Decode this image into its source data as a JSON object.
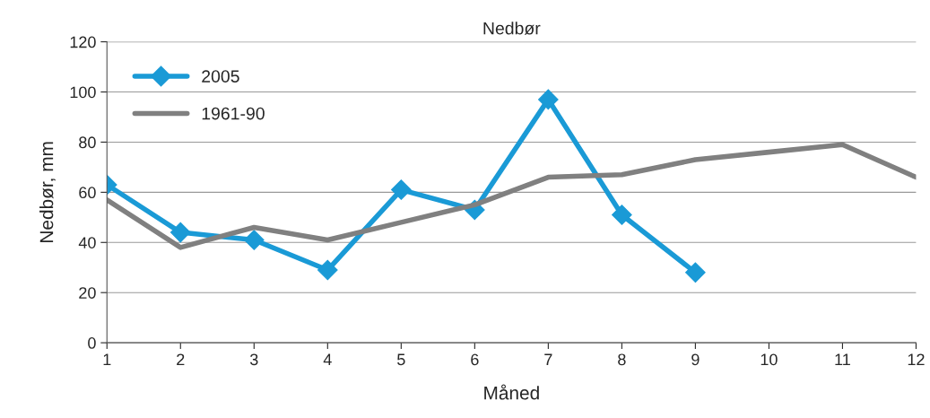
{
  "chart_data": {
    "type": "line",
    "title": "Nedbør",
    "xlabel": "Måned",
    "ylabel": "Nedbør, mm",
    "x": [
      1,
      2,
      3,
      4,
      5,
      6,
      7,
      8,
      9,
      10,
      11,
      12
    ],
    "series": [
      {
        "name": "2005",
        "color": "#1a9ad6",
        "marker": "diamond",
        "values": [
          63,
          44,
          41,
          29,
          61,
          53,
          97,
          51,
          28,
          null,
          null,
          null
        ]
      },
      {
        "name": "1961-90",
        "color": "#808080",
        "marker": "none",
        "values": [
          57,
          38,
          46,
          41,
          48,
          55,
          66,
          67,
          73,
          76,
          79,
          66
        ]
      }
    ],
    "xlim": [
      1,
      12
    ],
    "xticks": [
      1,
      2,
      3,
      4,
      5,
      6,
      7,
      8,
      9,
      10,
      11,
      12
    ],
    "ylim": [
      0,
      120
    ],
    "yticks": [
      0,
      20,
      40,
      60,
      80,
      100,
      120
    ],
    "grid": "y",
    "legend": "top left",
    "line_style": "solid"
  }
}
